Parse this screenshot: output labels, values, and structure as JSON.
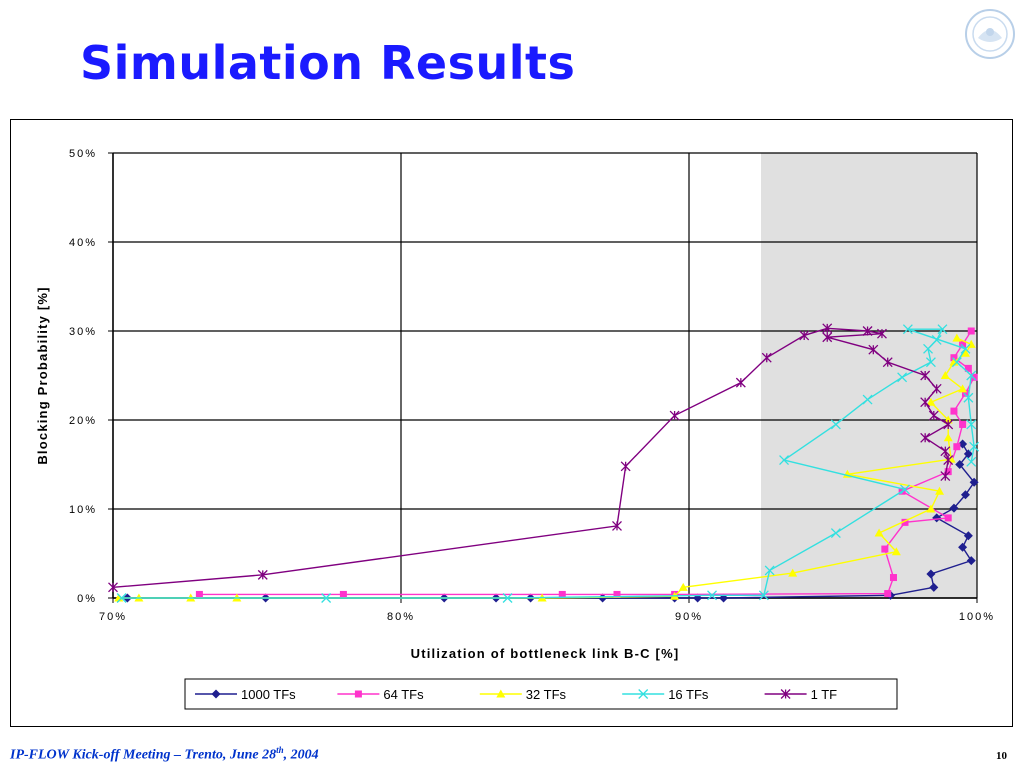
{
  "slide": {
    "title": "Simulation Results",
    "footer_left_main": "IP-FLOW Kick-off Meeting – Trento, June 28",
    "footer_left_sup": "th",
    "footer_left_tail": ", 2004",
    "page_number": "10",
    "logo_icon": "university-seal-icon"
  },
  "chart_data": {
    "type": "line",
    "xlabel": "Utilization of bottleneck link B-C [%]",
    "ylabel": "Blocking Probability [%]",
    "xlim": [
      70,
      100
    ],
    "ylim": [
      0,
      50
    ],
    "xticks": [
      "70%",
      "80%",
      "90%",
      "100%"
    ],
    "xtick_values": [
      70,
      80,
      90,
      100
    ],
    "yticks": [
      "0%",
      "10%",
      "20%",
      "30%",
      "40%",
      "50%"
    ],
    "ytick_values": [
      0,
      10,
      20,
      30,
      40,
      50
    ],
    "grid": true,
    "shaded_region": {
      "x_from": 92.5,
      "x_to": 100,
      "color": "#e0e0e0"
    },
    "legend_position": "bottom",
    "series": [
      {
        "name": "1000 TFs",
        "color": "#1f1f8f",
        "marker": "diamond",
        "points": [
          [
            70.5,
            0
          ],
          [
            75.3,
            0
          ],
          [
            81.5,
            0
          ],
          [
            83.3,
            0
          ],
          [
            84.5,
            0
          ],
          [
            87.0,
            0
          ],
          [
            89.5,
            0
          ],
          [
            90.3,
            0
          ],
          [
            91.2,
            0
          ],
          [
            97.0,
            0.3
          ],
          [
            98.5,
            1.2
          ],
          [
            98.4,
            2.7
          ],
          [
            99.8,
            4.2
          ],
          [
            99.5,
            5.7
          ],
          [
            99.7,
            7.0
          ],
          [
            98.6,
            9.0
          ],
          [
            99.2,
            10.1
          ],
          [
            99.6,
            11.6
          ],
          [
            99.9,
            13.0
          ],
          [
            99.4,
            15.0
          ],
          [
            99.7,
            16.2
          ],
          [
            99.5,
            17.3
          ]
        ]
      },
      {
        "name": "64 TFs",
        "color": "#ff33cc",
        "marker": "square",
        "points": [
          [
            73.0,
            0.4
          ],
          [
            78.0,
            0.4
          ],
          [
            85.6,
            0.4
          ],
          [
            87.5,
            0.4
          ],
          [
            89.5,
            0.4
          ],
          [
            96.9,
            0.5
          ],
          [
            97.1,
            2.3
          ],
          [
            96.8,
            5.5
          ],
          [
            97.5,
            8.5
          ],
          [
            99.0,
            9.0
          ],
          [
            97.4,
            12.0
          ],
          [
            99.0,
            14.2
          ],
          [
            99.3,
            17.0
          ],
          [
            99.5,
            19.5
          ],
          [
            99.2,
            21.0
          ],
          [
            99.6,
            23.0
          ],
          [
            99.9,
            24.8
          ],
          [
            99.7,
            25.8
          ],
          [
            99.2,
            27.0
          ],
          [
            99.5,
            28.5
          ],
          [
            99.8,
            30.0
          ]
        ]
      },
      {
        "name": "32 TFs",
        "color": "#ffff00",
        "marker": "triangle",
        "points": [
          [
            70.2,
            0
          ],
          [
            70.9,
            0
          ],
          [
            72.7,
            0
          ],
          [
            74.3,
            0
          ],
          [
            84.9,
            0
          ],
          [
            89.5,
            0.2
          ],
          [
            89.8,
            1.2
          ],
          [
            93.6,
            2.8
          ],
          [
            97.2,
            5.2
          ],
          [
            96.6,
            7.3
          ],
          [
            98.4,
            10.0
          ],
          [
            98.7,
            12.0
          ],
          [
            95.5,
            13.9
          ],
          [
            99.1,
            15.6
          ],
          [
            99.0,
            18.0
          ],
          [
            99.0,
            20.0
          ],
          [
            98.4,
            22.0
          ],
          [
            99.5,
            23.5
          ],
          [
            98.9,
            25.0
          ],
          [
            99.2,
            26.5
          ],
          [
            99.6,
            27.5
          ],
          [
            99.8,
            28.5
          ],
          [
            99.3,
            29.2
          ]
        ]
      },
      {
        "name": "16 TFs",
        "color": "#33e0e0",
        "marker": "x",
        "points": [
          [
            70.3,
            0
          ],
          [
            77.4,
            0
          ],
          [
            83.7,
            0
          ],
          [
            90.8,
            0.3
          ],
          [
            92.6,
            0.3
          ],
          [
            92.8,
            3.1
          ],
          [
            95.1,
            7.3
          ],
          [
            97.5,
            12.2
          ],
          [
            93.3,
            15.5
          ],
          [
            95.1,
            19.5
          ],
          [
            96.2,
            22.3
          ],
          [
            97.4,
            24.8
          ],
          [
            98.4,
            26.5
          ],
          [
            98.3,
            28.0
          ],
          [
            98.6,
            29.0
          ],
          [
            98.8,
            30.2
          ],
          [
            97.6,
            30.2
          ],
          [
            99.6,
            28.0
          ],
          [
            99.3,
            26.5
          ],
          [
            99.8,
            25.0
          ],
          [
            99.7,
            22.5
          ],
          [
            99.8,
            19.5
          ],
          [
            99.9,
            17.0
          ],
          [
            99.8,
            15.3
          ]
        ]
      },
      {
        "name": "1 TF",
        "color": "#800080",
        "marker": "star",
        "points": [
          [
            70.0,
            1.2
          ],
          [
            75.2,
            2.6
          ],
          [
            87.5,
            8.1
          ],
          [
            87.8,
            14.8
          ],
          [
            89.5,
            20.5
          ],
          [
            91.8,
            24.2
          ],
          [
            92.7,
            27.0
          ],
          [
            94.0,
            29.5
          ],
          [
            94.8,
            30.3
          ],
          [
            96.2,
            30.0
          ],
          [
            96.7,
            29.7
          ],
          [
            94.8,
            29.3
          ],
          [
            96.4,
            27.9
          ],
          [
            96.9,
            26.5
          ],
          [
            98.2,
            25.0
          ],
          [
            98.6,
            23.5
          ],
          [
            98.2,
            22.0
          ],
          [
            98.5,
            20.5
          ],
          [
            99.0,
            19.5
          ],
          [
            98.2,
            18.0
          ],
          [
            98.9,
            16.5
          ],
          [
            99.0,
            15.5
          ],
          [
            98.9,
            13.7
          ]
        ]
      }
    ]
  }
}
